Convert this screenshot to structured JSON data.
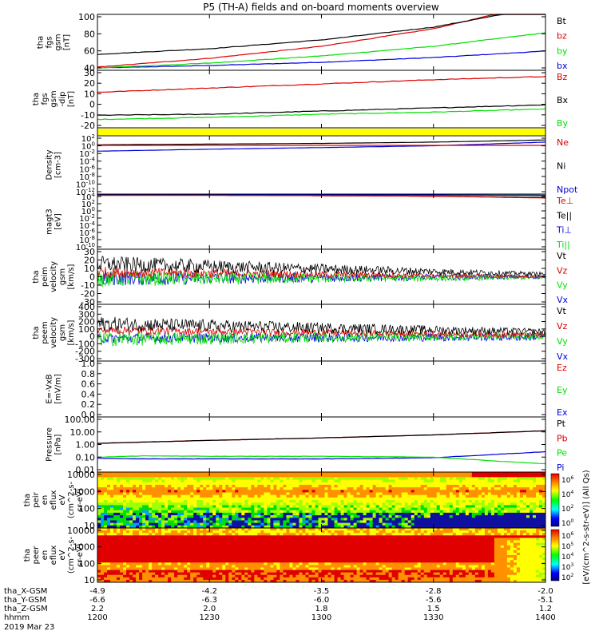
{
  "title": "P5 (TH-A) fields and on-board moments overview",
  "footer": {
    "row_labels": [
      "tha_X-GSM",
      "tha_Y-GSM",
      "tha_Z-GSM",
      "hhmm",
      "2019 Mar 23"
    ],
    "x_gsm": [
      "-4.9",
      "-4.2",
      "-3.5",
      "-2.8",
      "-2.0"
    ],
    "y_gsm": [
      "-6.6",
      "-6.3",
      "-6.0",
      "-5.6",
      "-5.1"
    ],
    "z_gsm": [
      "2.2",
      "2.0",
      "1.8",
      "1.5",
      "1.2"
    ],
    "hhmm": [
      "1200",
      "1230",
      "1300",
      "1330",
      "1400"
    ]
  },
  "colors": {
    "black": "#000000",
    "red": "#dd0000",
    "green": "#00e000",
    "blue": "#0000dd",
    "yellow": "#ffff00"
  },
  "colorbar": {
    "label": "[eV/(cm^2-s-str-eV)] (All Qs)",
    "ticks_top": [
      "10^6",
      "10^4",
      "10^2",
      "10^0"
    ],
    "ticks_bottom": [
      "10^6",
      "10^5",
      "10^4",
      "10^3",
      "10^2"
    ]
  },
  "chart_data": [
    {
      "type": "line",
      "name": "fgs_gsm",
      "ylabel": [
        "tha",
        "fgs",
        "gsm",
        "[nT]"
      ],
      "ylim": [
        30,
        100
      ],
      "yticks": [
        "100",
        "80",
        "60",
        "40"
      ],
      "x": [
        0,
        0.25,
        0.5,
        0.75,
        1.0
      ],
      "series": [
        {
          "name": "Bt",
          "color": "#000000",
          "values": [
            50,
            57,
            68,
            84,
            110
          ]
        },
        {
          "name": "bz",
          "color": "#dd0000",
          "values": [
            34,
            45,
            60,
            82,
            115
          ]
        },
        {
          "name": "by",
          "color": "#00e000",
          "values": [
            33,
            39,
            48,
            60,
            77
          ]
        },
        {
          "name": "bx",
          "color": "#0000dd",
          "values": [
            33,
            36,
            40,
            46,
            54
          ]
        }
      ]
    },
    {
      "type": "line",
      "name": "fgs_gsm_dip",
      "ylabel": [
        "tha",
        "fgs",
        "gsm",
        "-dip",
        "[nT]"
      ],
      "ylim": [
        -25,
        30
      ],
      "yticks": [
        "30",
        "20",
        "10",
        "0",
        "-10",
        "-20"
      ],
      "x": [
        0,
        0.25,
        0.5,
        0.75,
        1.0
      ],
      "series": [
        {
          "name": "Bz",
          "color": "#dd0000",
          "values": [
            9,
            13,
            17,
            21,
            24
          ]
        },
        {
          "name": "Bx",
          "color": "#000000",
          "values": [
            -13,
            -12,
            -9,
            -6,
            -3
          ]
        },
        {
          "name": "By",
          "color": "#00e000",
          "values": [
            -17,
            -15,
            -12,
            -10,
            -7
          ]
        }
      ]
    },
    {
      "type": "bar",
      "name": "status_bar",
      "color": "#ffff00",
      "values": [
        1
      ]
    },
    {
      "type": "line",
      "name": "density",
      "ylabel": [
        "Density",
        "[cm-3]"
      ],
      "log": true,
      "ylim": [
        -12,
        2
      ],
      "yticks": [
        "10^2",
        "10^0",
        "10^-2",
        "10^-4",
        "10^-6",
        "10^-8",
        "10^-10",
        "10^-12"
      ],
      "x": [
        0,
        0.25,
        0.5,
        0.75,
        1.0
      ],
      "series": [
        {
          "name": "Ne",
          "color": "#dd0000",
          "values": [
            0.5,
            0.5,
            0.5,
            0.5,
            0.5
          ]
        },
        {
          "name": "Ni",
          "color": "#000000",
          "values": [
            0.7,
            1.0,
            1.5,
            3,
            10
          ]
        },
        {
          "name": "Npot",
          "color": "#0000dd",
          "values": [
            0.02,
            0.06,
            0.15,
            0.4,
            3
          ]
        }
      ]
    },
    {
      "type": "line",
      "name": "magt3",
      "ylabel": [
        "magt3",
        "[eV]"
      ],
      "log": true,
      "ylim": [
        -10,
        4
      ],
      "yticks": [
        "10^4",
        "10^2",
        "10^0",
        "10^-2",
        "10^-4",
        "10^-6",
        "10^-8",
        "10^-10"
      ],
      "x": [
        0,
        0.25,
        0.5,
        0.75,
        1.0
      ],
      "series": [
        {
          "name": "Te⊥",
          "color": "#dd0000",
          "values": [
            5000,
            5000,
            4000,
            3000,
            1000
          ]
        },
        {
          "name": "Te||",
          "color": "#000000",
          "values": [
            5000,
            5000,
            4000,
            3000,
            1500
          ]
        },
        {
          "name": "Ti⊥",
          "color": "#0000dd",
          "values": [
            8000,
            8000,
            7000,
            6000,
            5000
          ]
        },
        {
          "name": "Ti||",
          "color": "#00e000",
          "values": [
            8000,
            8000,
            7000,
            6000,
            5000
          ]
        }
      ]
    },
    {
      "type": "line",
      "name": "peim_velocity",
      "ylabel": [
        "tha",
        "peim",
        "velocity",
        "gsm",
        "[km/s]"
      ],
      "ylim": [
        -30,
        30
      ],
      "yticks": [
        "30",
        "20",
        "10",
        "0",
        "-10",
        "-20",
        "-30"
      ],
      "series": [
        {
          "name": "Vt",
          "color": "#000000",
          "mean_start": 14,
          "mean_end": 3,
          "noise_start": 9,
          "noise_end": 2
        },
        {
          "name": "Vz",
          "color": "#dd0000",
          "mean_start": 5,
          "mean_end": 0,
          "noise_start": 6,
          "noise_end": 1.5
        },
        {
          "name": "Vy",
          "color": "#00e000",
          "mean_start": -2,
          "mean_end": -1,
          "noise_start": 9,
          "noise_end": 2
        },
        {
          "name": "Vx",
          "color": "#0000dd",
          "mean_start": -2,
          "mean_end": 0,
          "noise_start": 8,
          "noise_end": 2
        }
      ]
    },
    {
      "type": "line",
      "name": "peem_velocity",
      "ylabel": [
        "tha",
        "peem",
        "velocity",
        "gsm",
        "[km/s]"
      ],
      "ylim": [
        -300,
        400
      ],
      "yticks": [
        "400",
        "300",
        "200",
        "100",
        "0",
        "-100",
        "-200",
        "-300"
      ],
      "series": [
        {
          "name": "Vt",
          "color": "#000000",
          "mean_start": 160,
          "mean_end": 60,
          "noise_start": 90,
          "noise_end": 40
        },
        {
          "name": "Vz",
          "color": "#dd0000",
          "mean_start": 80,
          "mean_end": 20,
          "noise_start": 50,
          "noise_end": 30
        },
        {
          "name": "Vy",
          "color": "#00e000",
          "mean_start": -30,
          "mean_end": 10,
          "noise_start": 90,
          "noise_end": 40
        },
        {
          "name": "Vx",
          "color": "#0000dd",
          "mean_start": -20,
          "mean_end": 0,
          "noise_start": 60,
          "noise_end": 50
        }
      ]
    },
    {
      "type": "line",
      "name": "e_field",
      "ylabel": [
        "E=-VxB",
        "[mV/m]"
      ],
      "ylim": [
        0,
        1
      ],
      "yticks": [
        "1.0",
        "0.8",
        "0.6",
        "0.4",
        "0.2",
        "0.0"
      ],
      "series": [
        {
          "name": "Ez",
          "color": "#dd0000",
          "values": []
        },
        {
          "name": "Ey",
          "color": "#00e000",
          "values": []
        },
        {
          "name": "Ex",
          "color": "#0000dd",
          "values": []
        }
      ]
    },
    {
      "type": "line",
      "name": "pressure",
      "ylabel": [
        "Pressure",
        "[nPa]"
      ],
      "log": true,
      "ylim": [
        -2,
        2
      ],
      "yticks": [
        "100.00",
        "10.00",
        "1.00",
        "0.10",
        "0.01"
      ],
      "x": [
        0,
        0.1,
        0.25,
        0.5,
        0.75,
        0.9,
        1.0
      ],
      "series": [
        {
          "name": "Pt",
          "color": "#000000",
          "values": [
            1.2,
            1.5,
            2.0,
            3.0,
            5.0,
            7.5,
            10
          ]
        },
        {
          "name": "Pb",
          "color": "#dd0000",
          "values": [
            1.2,
            1.5,
            2.0,
            3.0,
            5.0,
            7.5,
            10
          ]
        },
        {
          "name": "Pe",
          "color": "#00e000",
          "values": [
            0.12,
            0.15,
            0.14,
            0.14,
            0.12,
            0.06,
            0.04
          ]
        },
        {
          "name": "Pi",
          "color": "#0000dd",
          "values": [
            0.1,
            0.09,
            0.09,
            0.09,
            0.11,
            0.2,
            0.3
          ]
        }
      ]
    },
    {
      "type": "heatmap",
      "name": "peir_en_eflux",
      "ylabel": [
        "tha",
        "peir",
        "en",
        "eflux",
        "eV",
        "(cm^2-s-",
        "sr-eV)"
      ],
      "yticks": [
        "10000",
        "1000",
        "100",
        "10"
      ]
    },
    {
      "type": "heatmap",
      "name": "peer_en_eflux",
      "ylabel": [
        "tha",
        "peer",
        "en",
        "eflux",
        "eV",
        "(cm^2-s-",
        "sr-eV)"
      ],
      "yticks": [
        "10000",
        "1000",
        "100",
        "10"
      ]
    }
  ]
}
